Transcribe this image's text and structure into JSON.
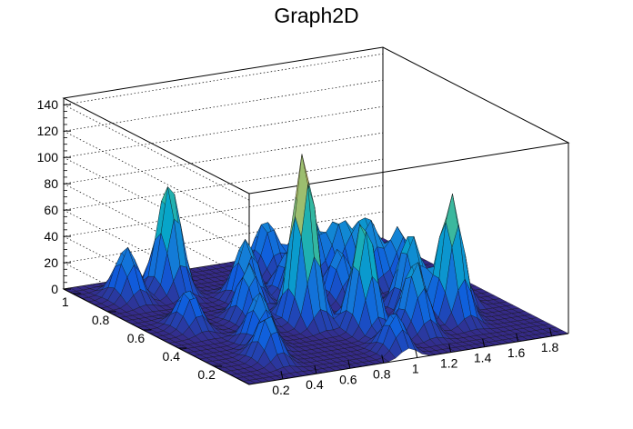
{
  "chart_data": {
    "type": "surface3d",
    "title": "Graph2D",
    "xlabel": "",
    "ylabel": "",
    "zlabel": "",
    "xlim": [
      0.0,
      1.9
    ],
    "ylim": [
      0.0,
      1.05
    ],
    "zlim": [
      0,
      145
    ],
    "x_ticks": [
      "0.2",
      "0.4",
      "0.6",
      "0.8",
      "1",
      "1.2",
      "1.4",
      "1.6",
      "1.8"
    ],
    "x_tick_values": [
      0.2,
      0.4,
      0.6,
      0.8,
      1.0,
      1.2,
      1.4,
      1.6,
      1.8
    ],
    "y_ticks": [
      "0.2",
      "0.4",
      "0.6",
      "0.8",
      "1"
    ],
    "y_tick_values": [
      0.2,
      0.4,
      0.6,
      0.8,
      1.0
    ],
    "z_ticks": [
      "0",
      "20",
      "40",
      "60",
      "80",
      "100",
      "120",
      "140"
    ],
    "z_tick_values": [
      0,
      20,
      40,
      60,
      80,
      100,
      120,
      140
    ],
    "grid": true,
    "palette": [
      "#352a87",
      "#0f5cdd",
      "#1481d6",
      "#06a4ca",
      "#2eb7a4",
      "#87bf77",
      "#d1bb59",
      "#fec832",
      "#f9fb0e"
    ],
    "peaks": [
      {
        "x": 0.2,
        "y": 0.88,
        "z": 40
      },
      {
        "x": 0.45,
        "y": 0.88,
        "z": 85
      },
      {
        "x": 0.72,
        "y": 0.7,
        "z": 48
      },
      {
        "x": 0.55,
        "y": 0.52,
        "z": 45
      },
      {
        "x": 0.4,
        "y": 0.32,
        "z": 40
      },
      {
        "x": 0.22,
        "y": 0.55,
        "z": 30
      },
      {
        "x": 0.3,
        "y": 0.18,
        "z": 35
      },
      {
        "x": 0.8,
        "y": 0.45,
        "z": 130
      },
      {
        "x": 0.95,
        "y": 0.68,
        "z": 35
      },
      {
        "x": 1.05,
        "y": 0.9,
        "z": 42
      },
      {
        "x": 1.2,
        "y": 0.82,
        "z": 55
      },
      {
        "x": 1.32,
        "y": 0.75,
        "z": 45
      },
      {
        "x": 1.42,
        "y": 0.68,
        "z": 50
      },
      {
        "x": 1.55,
        "y": 0.62,
        "z": 45
      },
      {
        "x": 1.6,
        "y": 0.85,
        "z": 35
      },
      {
        "x": 1.0,
        "y": 0.3,
        "z": 85
      },
      {
        "x": 1.22,
        "y": 0.22,
        "z": 55
      },
      {
        "x": 1.38,
        "y": 0.4,
        "z": 60
      },
      {
        "x": 1.5,
        "y": 0.28,
        "z": 95
      },
      {
        "x": 1.65,
        "y": 0.4,
        "z": 35
      },
      {
        "x": 0.95,
        "y": 0.08,
        "z": 30
      },
      {
        "x": 1.15,
        "y": 0.58,
        "z": 40
      }
    ]
  }
}
